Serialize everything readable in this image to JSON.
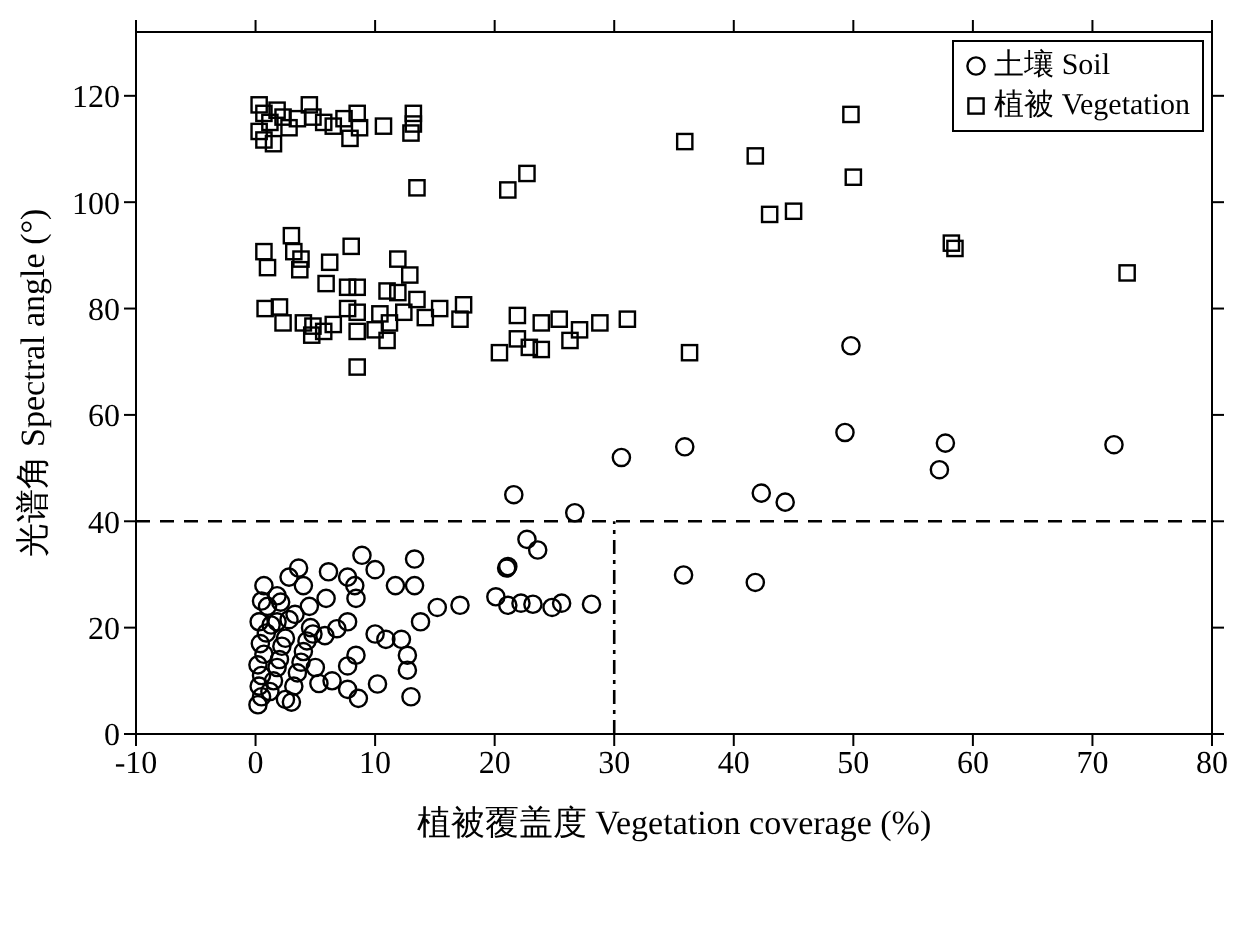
{
  "chart_data": {
    "type": "scatter",
    "xlabel": "植被覆盖度 Vegetation coverage (%)",
    "ylabel": "光谱角 Spectral angle (°)",
    "xlim": [
      -10,
      80
    ],
    "xticks": [
      -10,
      0,
      10,
      20,
      30,
      40,
      50,
      60,
      70,
      80
    ],
    "ylim": [
      0,
      132
    ],
    "yticks": [
      0,
      20,
      40,
      60,
      80,
      100,
      120
    ],
    "grid": false,
    "legend": "top right",
    "ref_lines": [
      {
        "axis": "y",
        "value": 40,
        "line_style": "dashed"
      },
      {
        "axis": "x",
        "value": 30,
        "line_style": "dashed"
      }
    ],
    "series": [
      {
        "name": "土壤 Soil",
        "color": "#000000",
        "marker": "circle",
        "x": [
          8.9,
          13.3,
          3.6,
          6.1,
          7.7,
          8.3,
          10,
          21,
          0.7,
          2.8,
          4,
          5.9,
          8.4,
          11.7,
          13.3,
          2.1,
          15.2,
          17.1,
          20.1,
          0.3,
          1.8,
          4.8,
          5.8,
          6.8,
          7.7,
          10,
          10.9,
          12.2,
          13.8,
          12.7,
          12.7,
          8.4,
          7.7,
          10.2,
          7.7,
          8.6,
          13,
          6.4,
          0.2,
          0.5,
          0.3,
          0.5,
          0.2,
          0.7,
          0.4,
          0.9,
          1.2,
          1.5,
          1.8,
          2,
          2.2,
          2.5,
          1.3,
          3,
          3.2,
          3.5,
          3.8,
          2.8,
          4,
          4.3,
          4.6,
          5,
          5.3,
          2.5,
          1,
          0.5,
          1.8,
          3.3,
          4.5,
          21.6,
          26.7,
          30.6,
          35.9,
          49.3,
          57.7,
          57.2,
          71.8,
          42.3,
          44.3,
          22.7,
          23.6,
          21.1,
          35.8,
          41.8,
          21.1,
          22.2,
          23.2,
          24.8,
          25.6,
          28.1,
          49.8
        ],
        "values": [
          33.6,
          32.9,
          31.2,
          30.5,
          29.5,
          27.9,
          30.9,
          31.2,
          27.9,
          29.5,
          27.9,
          25.5,
          25.5,
          27.9,
          27.9,
          24.8,
          23.8,
          24.2,
          25.8,
          21.1,
          21.1,
          18.8,
          18.5,
          19.8,
          21.1,
          18.8,
          17.8,
          17.8,
          21.1,
          14.8,
          12,
          14.8,
          12.8,
          9.4,
          8.4,
          6.7,
          7,
          10,
          5.5,
          7,
          9,
          11,
          13,
          15,
          17,
          19,
          8,
          10,
          12.5,
          14,
          16.5,
          18,
          20.5,
          6,
          9,
          11.5,
          13.5,
          21.5,
          15.5,
          17.5,
          20,
          12.5,
          9.5,
          6.5,
          24,
          25,
          26,
          22.5,
          24,
          45,
          41.6,
          52,
          54,
          56.7,
          54.7,
          49.7,
          54.4,
          45.3,
          43.6,
          36.6,
          34.6,
          31.5,
          29.9,
          28.5,
          24.2,
          24.6,
          24.4,
          23.8,
          24.6,
          24.4,
          73
        ]
      },
      {
        "name": "植被 Vegetation",
        "color": "#000000",
        "marker": "square",
        "x": [
          21.1,
          22.7,
          35.9,
          41.8,
          49.8,
          43,
          45,
          50,
          58.2,
          58.5,
          72.9,
          21.9,
          20.4,
          21.9,
          22.9,
          23.9,
          23.9,
          25.4,
          26.3,
          27.1,
          28.8,
          31.1,
          36.3,
          0.3,
          0.7,
          1.2,
          0.3,
          0.7,
          1.5,
          1.8,
          2.3,
          2.8,
          3.5,
          4.5,
          4.8,
          5.7,
          6.5,
          7.4,
          8.5,
          8.7,
          7.9,
          10.7,
          13.2,
          13.2,
          13,
          13.5,
          0.7,
          1,
          3,
          3.2,
          3.8,
          3.7,
          6.2,
          5.9,
          8,
          7.7,
          8.5,
          11.9,
          12.9,
          11,
          11.9,
          13.5,
          15.4,
          17.4,
          17.1,
          14.2,
          12.4,
          10.4,
          10,
          11,
          8.5,
          8.5,
          7.7,
          6.5,
          4.8,
          4.7,
          4,
          2.3,
          2,
          0.8,
          5.7,
          8.5,
          11.2
        ],
        "values": [
          102.3,
          105.4,
          111.4,
          108.7,
          116.5,
          97.7,
          98.3,
          104.7,
          92.3,
          91.3,
          86.7,
          78.7,
          71.7,
          74.3,
          72.7,
          72.3,
          77.3,
          78,
          74,
          76,
          77.3,
          78,
          71.7,
          118.3,
          116.7,
          115,
          113.3,
          111.7,
          111,
          117.3,
          116,
          114,
          115.7,
          118.3,
          116,
          115,
          114.3,
          115.7,
          116.7,
          114,
          112,
          114.3,
          116.7,
          114.7,
          113,
          102.7,
          90.7,
          87.7,
          93.7,
          90.7,
          89.3,
          87.3,
          88.7,
          84.7,
          91.7,
          84,
          84,
          89.3,
          86.3,
          83.3,
          83,
          81.7,
          80,
          80.7,
          78,
          78.3,
          79.3,
          79,
          76,
          74,
          75.7,
          79.3,
          80,
          77,
          76.7,
          75,
          77.3,
          77.3,
          80.3,
          80,
          75.7,
          69,
          77.3
        ]
      }
    ]
  }
}
